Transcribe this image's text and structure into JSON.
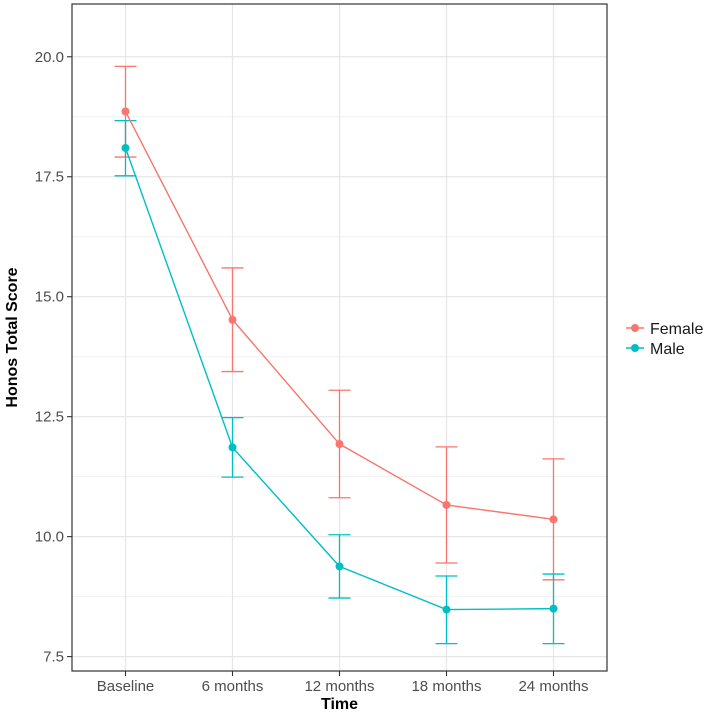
{
  "chart_data": {
    "type": "line",
    "title": "",
    "xlabel": "Time",
    "ylabel": "Honos Total Score",
    "categories": [
      "Baseline",
      "6 months",
      "12 months",
      "18 months",
      "24 months"
    ],
    "ylim": [
      7.2,
      21.1
    ],
    "yticks": [
      7.5,
      10.0,
      12.5,
      15.0,
      17.5,
      20.0
    ],
    "ytick_labels": [
      "7.5",
      "10.0",
      "12.5",
      "15.0",
      "17.5",
      "20.0"
    ],
    "grid": true,
    "legend_position": "right",
    "series": [
      {
        "name": "Female",
        "color": "#F8766D",
        "values": [
          18.86,
          14.52,
          11.93,
          10.66,
          10.36
        ],
        "lower": [
          17.91,
          13.44,
          10.81,
          9.45,
          9.1
        ],
        "upper": [
          19.8,
          15.6,
          13.05,
          11.87,
          11.62
        ]
      },
      {
        "name": "Male",
        "color": "#00BFC4",
        "values": [
          18.1,
          11.86,
          9.38,
          8.48,
          8.5
        ],
        "lower": [
          17.52,
          11.24,
          8.72,
          7.77,
          7.77
        ],
        "upper": [
          18.67,
          12.48,
          10.04,
          9.18,
          9.22
        ]
      }
    ]
  }
}
